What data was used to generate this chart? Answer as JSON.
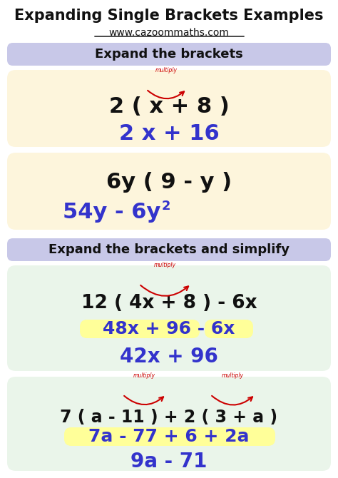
{
  "title": "Expanding Single Brackets Examples",
  "website": "www.cazoommaths.com",
  "bg_color": "#ffffff",
  "header1_bg": "#c8c8e8",
  "header2_bg": "#c8c8e8",
  "box1_bg": "#fdf5dc",
  "box2_bg": "#fdf5dc",
  "box3_bg": "#eaf5ea",
  "box4_bg": "#eaf5ea",
  "highlight_yellow": "#ffff99",
  "blue_color": "#3333cc",
  "red_color": "#cc0000",
  "black_color": "#111111",
  "section1_header": "Expand the brackets",
  "section2_header": "Expand the brackets and simplify",
  "box1_problem": "2 ( x + 8 )",
  "box1_answer": "2 x + 16",
  "box2_problem": "6y ( 9 - y )",
  "box3_problem": "12 ( 4x + 8 ) - 6x",
  "box3_step": "48x + 96 - 6x",
  "box3_answer": "42x + 96",
  "box4_problem": "7 ( a - 11 ) + 2 ( 3 + a )",
  "box4_step": "7a - 77 + 6 + 2a",
  "box4_answer": "9a - 71"
}
